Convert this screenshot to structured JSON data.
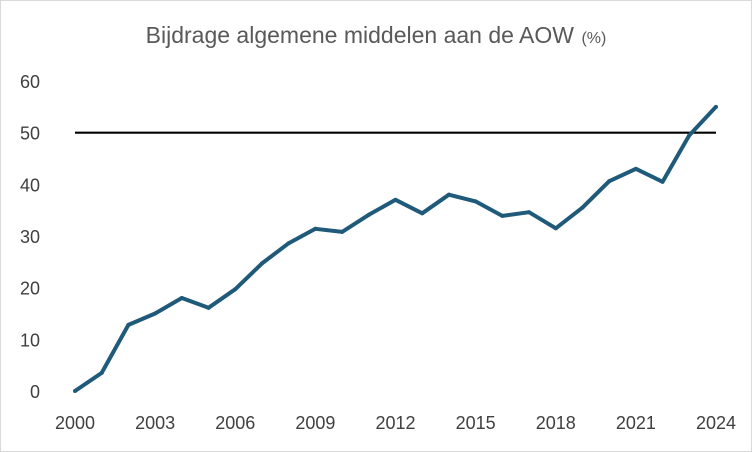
{
  "chart_data": {
    "type": "line",
    "title": "Bijdrage algemene middelen aan de AOW",
    "title_unit": "(%)",
    "xlabel": "",
    "ylabel": "",
    "x_tick_labels": [
      "2000",
      "2003",
      "2006",
      "2009",
      "2012",
      "2015",
      "2018",
      "2021",
      "2024"
    ],
    "y_tick_labels": [
      "0",
      "10",
      "20",
      "30",
      "40",
      "50",
      "60"
    ],
    "xlim": [
      2000,
      2024
    ],
    "ylim": [
      0,
      60
    ],
    "grid": false,
    "legend": "none",
    "series": [
      {
        "color": "#1f5a7a",
        "x": [
          2000,
          2001,
          2002,
          2003,
          2004,
          2005,
          2006,
          2007,
          2008,
          2009,
          2010,
          2011,
          2012,
          2013,
          2014,
          2015,
          2016,
          2017,
          2018,
          2019,
          2020,
          2021,
          2022,
          2023,
          2024
        ],
        "y": [
          0,
          3.5,
          12.8,
          15,
          18,
          16.1,
          19.7,
          24.7,
          28.6,
          31.4,
          30.8,
          34.1,
          37,
          34.4,
          38,
          36.7,
          33.9,
          34.6,
          31.5,
          35.5,
          40.6,
          43,
          40.5,
          49.5,
          55
        ]
      }
    ],
    "reference_line": {
      "y": 50,
      "color": "#000000"
    }
  }
}
